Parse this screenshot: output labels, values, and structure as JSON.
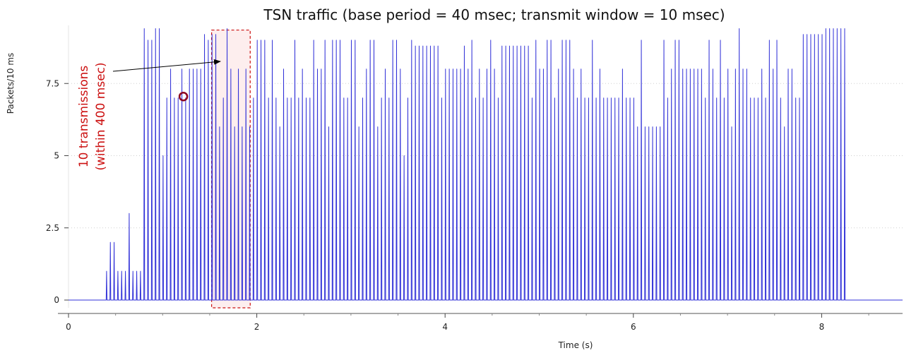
{
  "chart_data": {
    "type": "line",
    "title": "TSN traffic (base period = 40 msec; transmit window = 10 msec)",
    "xlabel": "Time (s)",
    "ylabel": "Packets/10 ms",
    "xlim": [
      0,
      9
    ],
    "ylim": [
      0,
      9.5
    ],
    "x_ticks": [
      {
        "value": 0,
        "label": "0"
      },
      {
        "value": 2,
        "label": "2"
      },
      {
        "value": 4,
        "label": "4"
      },
      {
        "value": 6,
        "label": "6"
      },
      {
        "value": 8,
        "label": "8"
      }
    ],
    "y_ticks": [
      {
        "value": 0,
        "label": "0"
      },
      {
        "value": 2.5,
        "label": "2.5"
      },
      {
        "value": 5,
        "label": "5"
      },
      {
        "value": 7.5,
        "label": "7.5"
      }
    ],
    "grid": "horizontal-dotted",
    "series_color": "#3232d8",
    "series": [
      {
        "pulse_period": 0.04,
        "pulse_width": 0.01,
        "start": 0.4,
        "values": [
          1,
          2,
          2,
          1,
          1,
          1,
          3,
          1,
          1,
          1,
          9.4,
          9,
          9,
          9.4,
          9.4,
          5,
          7,
          8,
          7,
          7,
          8,
          7,
          8,
          8,
          8,
          8,
          9.2,
          9,
          9.2,
          9.2,
          6,
          7,
          9.4,
          8,
          6,
          8,
          6,
          8,
          6,
          7,
          9,
          9,
          9,
          7,
          9,
          7,
          6,
          8,
          7,
          7,
          9,
          7,
          8,
          7,
          7,
          9,
          8,
          8,
          9,
          6,
          9,
          9,
          9,
          7,
          7,
          9,
          9,
          6,
          7,
          8,
          9,
          9,
          6,
          7,
          8,
          7,
          9,
          9,
          8,
          5,
          7,
          9,
          8.8,
          8.8,
          8.8,
          8.8,
          8.8,
          8.8,
          8.8,
          7,
          8,
          8,
          8,
          8,
          8,
          8.8,
          8,
          9,
          7,
          8,
          7,
          8,
          9,
          8,
          7,
          8.8,
          8.8,
          8.8,
          8.8,
          8.8,
          8.8,
          8.8,
          8.8,
          7,
          9,
          8,
          8,
          9,
          9,
          7,
          8,
          9,
          9,
          9,
          8,
          7,
          8,
          7,
          7,
          9,
          7,
          8,
          7,
          7,
          7,
          7,
          7,
          8,
          7,
          7,
          7,
          6,
          9,
          6,
          6,
          6,
          6,
          6,
          9,
          7,
          8,
          9,
          9,
          8,
          8,
          8,
          8,
          8,
          8,
          7,
          9,
          8,
          7,
          9,
          7,
          8,
          6,
          8,
          9.4,
          8,
          8,
          7,
          7,
          7,
          8,
          7,
          9,
          8,
          9,
          7,
          6,
          8,
          8,
          7,
          7,
          9.2,
          9.2,
          9.2,
          9.2,
          9.2,
          9.2,
          9.4,
          9.4,
          9.4,
          9.4,
          9.4,
          9.4
        ]
      }
    ],
    "annotations": [
      {
        "type": "dashed-box",
        "x_range": [
          1.52,
          1.93
        ],
        "y_range": [
          0,
          9.35
        ],
        "stroke": "#cc1111",
        "fill": "#fdeeee"
      },
      {
        "type": "text",
        "text": "10 transmissions",
        "color": "#cc1111",
        "rotation": -90
      },
      {
        "type": "text",
        "text": "(within 400 msec)",
        "color": "#cc1111",
        "rotation": -90
      },
      {
        "type": "arrow",
        "from": [
          0.5,
          7.8
        ],
        "to": [
          1.63,
          8.2
        ],
        "color": "#000000"
      },
      {
        "type": "circle-marker",
        "x": 1.22,
        "y": 7.0,
        "color": "#8b0020"
      }
    ]
  }
}
